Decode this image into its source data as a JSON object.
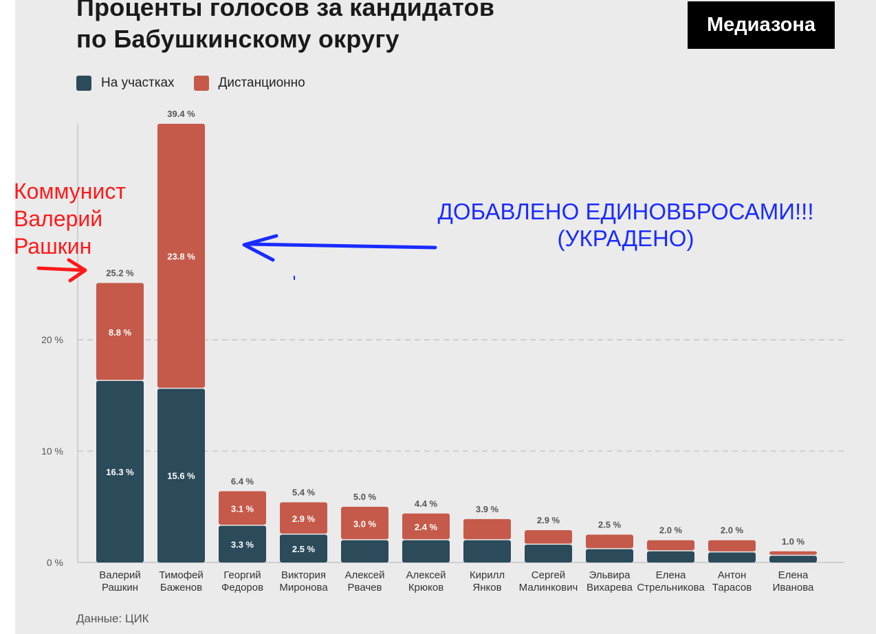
{
  "header": {
    "title_line1": "Проценты голосов за кандидатов",
    "title_line2": "по Бабушкинскому округу",
    "brand": "Медиазона"
  },
  "legend": [
    {
      "label": "На участках",
      "color": "#2b4a5a"
    },
    {
      "label": "Дистанционно",
      "color": "#c55a4a"
    }
  ],
  "source": "Данные: ЦИК",
  "annotations": {
    "left_red": [
      "Коммунист",
      "Валерий",
      "Рашкин"
    ],
    "blue": [
      "ДОБАВЛЕНО ЕДИНОВБРОСАМИ!!!",
      "(УКРАДЕНО)"
    ],
    "red_color": "#ff1a1a",
    "blue_color": "#1a2bff"
  },
  "chart_data": {
    "type": "bar",
    "stacked": true,
    "categories": [
      [
        "Валерий",
        "Рашкин"
      ],
      [
        "Тимофей",
        "Баженов"
      ],
      [
        "Георгий",
        "Федоров"
      ],
      [
        "Виктория",
        "Миронова"
      ],
      [
        "Алексей",
        "Рвачев"
      ],
      [
        "Алексей",
        "Крюков"
      ],
      [
        "Кирилл",
        "Янков"
      ],
      [
        "Сергей",
        "Малинкович"
      ],
      [
        "Эльвира",
        "Вихарева"
      ],
      [
        "Елена",
        "Стрельникова"
      ],
      [
        "Антон",
        "Тарасов"
      ],
      [
        "Елена",
        "Иванова"
      ]
    ],
    "series": [
      {
        "name": "На участках",
        "color": "#2b4a5a",
        "values": [
          16.3,
          15.6,
          3.3,
          2.5,
          2.0,
          2.0,
          2.0,
          1.6,
          1.2,
          1.0,
          0.9,
          0.6
        ],
        "labels": [
          "16.3 %",
          "15.6 %",
          "3.3 %",
          "2.5 %",
          "",
          "",
          "",
          "",
          "",
          "",
          "",
          ""
        ]
      },
      {
        "name": "Дистанционно",
        "color": "#c55a4a",
        "values": [
          8.8,
          23.8,
          3.1,
          2.9,
          3.0,
          2.4,
          1.9,
          1.3,
          1.3,
          1.0,
          1.1,
          0.4
        ],
        "labels": [
          "8.8 %",
          "23.8 %",
          "3.1 %",
          "2.9 %",
          "3.0 %",
          "2.4 %",
          "",
          "",
          "",
          "",
          "",
          ""
        ]
      }
    ],
    "totals": [
      "25.2 %",
      "39.4 %",
      "6.4 %",
      "5.4 %",
      "5.0 %",
      "4.4 %",
      "3.9 %",
      "2.9 %",
      "2.5 %",
      "2.0 %",
      "2.0 %",
      "1.0 %"
    ],
    "yticks": [
      0,
      10,
      20
    ],
    "ytick_labels": [
      "0 %",
      "10 %",
      "20 %"
    ],
    "ylim": [
      0,
      39.4
    ],
    "grid": true,
    "legend_position": "top-left"
  }
}
